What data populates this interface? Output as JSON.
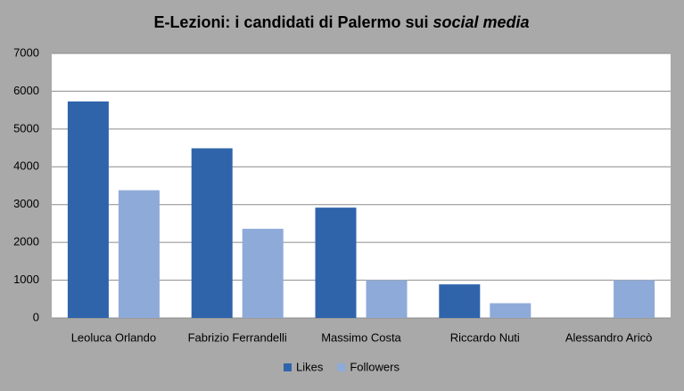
{
  "chart_data": {
    "type": "bar",
    "title": {
      "text": "E-Lezioni: i candidati di Palermo sui",
      "emphasis": "social media"
    },
    "categories": [
      "Leoluca Orlando",
      "Fabrizio Ferrandelli",
      "Massimo Costa",
      "Riccardo Nuti",
      "Alessandro Aricò"
    ],
    "series": [
      {
        "name": "Likes",
        "color": "#2f64ab",
        "values": [
          5730,
          4490,
          2920,
          890,
          0
        ]
      },
      {
        "name": "Followers",
        "color": "#8eaad8",
        "values": [
          3380,
          2360,
          1000,
          390,
          1000
        ]
      }
    ],
    "ylim": [
      0,
      7000
    ],
    "yticks": [
      0,
      1000,
      2000,
      3000,
      4000,
      5000,
      6000,
      7000
    ],
    "grid": true,
    "legend": "bottom"
  }
}
